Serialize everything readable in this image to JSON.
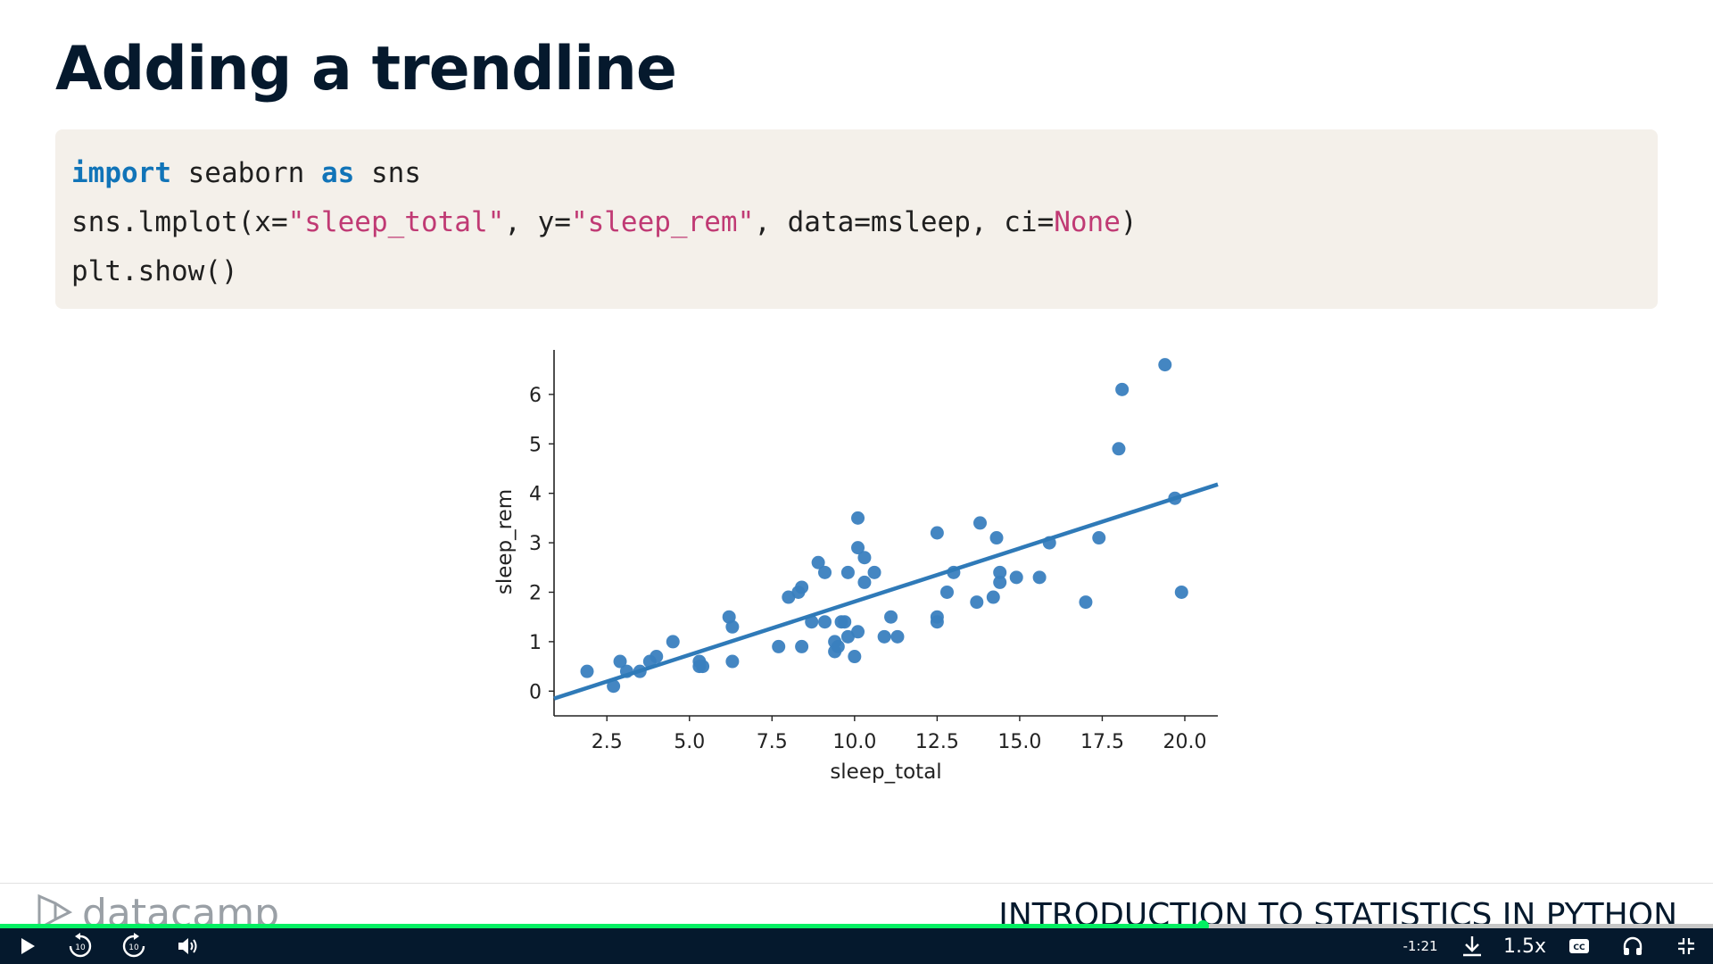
{
  "slide": {
    "title": "Adding a trendline"
  },
  "code": {
    "line1": {
      "kw1": "import",
      "mid": " seaborn ",
      "kw2": "as",
      "end": " sns"
    },
    "line2": {
      "p1": "sns.lmplot(x=",
      "s1": "\"sleep_total\"",
      "p2": ", y=",
      "s2": "\"sleep_rem\"",
      "p3": ", data=msleep, ci=",
      "n1": "None",
      "p4": ")"
    },
    "line3": "plt.show()"
  },
  "chart_data": {
    "type": "scatter",
    "xlabel": "sleep_total",
    "ylabel": "sleep_rem",
    "xlim": [
      0.9,
      21.0
    ],
    "ylim": [
      -0.5,
      6.9
    ],
    "xticks": [
      "2.5",
      "5.0",
      "7.5",
      "10.0",
      "12.5",
      "15.0",
      "17.5",
      "20.0"
    ],
    "yticks": [
      "0",
      "1",
      "2",
      "3",
      "4",
      "5",
      "6"
    ],
    "point_color": "#3a7fbf",
    "line_color": "#2f7ab8",
    "trendline": {
      "x": [
        0.9,
        21.0
      ],
      "y": [
        -0.15,
        4.18
      ]
    },
    "points": [
      [
        1.9,
        0.4
      ],
      [
        2.7,
        0.1
      ],
      [
        2.9,
        0.6
      ],
      [
        3.1,
        0.4
      ],
      [
        3.5,
        0.4
      ],
      [
        3.8,
        0.6
      ],
      [
        4.0,
        0.7
      ],
      [
        4.5,
        1.0
      ],
      [
        5.3,
        0.6
      ],
      [
        5.4,
        0.5
      ],
      [
        5.3,
        0.5
      ],
      [
        6.2,
        1.5
      ],
      [
        6.3,
        1.3
      ],
      [
        6.3,
        0.6
      ],
      [
        7.7,
        0.9
      ],
      [
        8.0,
        1.9
      ],
      [
        8.3,
        2.0
      ],
      [
        8.4,
        2.1
      ],
      [
        8.4,
        0.9
      ],
      [
        8.7,
        1.4
      ],
      [
        8.9,
        2.6
      ],
      [
        9.1,
        2.4
      ],
      [
        9.1,
        1.4
      ],
      [
        9.4,
        1.0
      ],
      [
        9.4,
        0.8
      ],
      [
        9.5,
        0.9
      ],
      [
        9.6,
        1.4
      ],
      [
        9.7,
        1.4
      ],
      [
        9.8,
        2.4
      ],
      [
        9.8,
        1.1
      ],
      [
        10.0,
        0.7
      ],
      [
        10.1,
        2.9
      ],
      [
        10.1,
        3.5
      ],
      [
        10.1,
        1.2
      ],
      [
        10.3,
        2.7
      ],
      [
        10.3,
        2.2
      ],
      [
        10.6,
        2.4
      ],
      [
        10.9,
        1.1
      ],
      [
        11.1,
        1.5
      ],
      [
        11.3,
        1.1
      ],
      [
        12.5,
        3.2
      ],
      [
        12.5,
        1.5
      ],
      [
        12.5,
        1.4
      ],
      [
        12.8,
        2.0
      ],
      [
        13.0,
        2.4
      ],
      [
        13.7,
        1.8
      ],
      [
        13.8,
        3.4
      ],
      [
        14.2,
        1.9
      ],
      [
        14.3,
        3.1
      ],
      [
        14.4,
        2.4
      ],
      [
        14.4,
        2.2
      ],
      [
        14.9,
        2.3
      ],
      [
        15.6,
        2.3
      ],
      [
        15.9,
        3.0
      ],
      [
        17.0,
        1.8
      ],
      [
        17.4,
        3.1
      ],
      [
        18.0,
        4.9
      ],
      [
        18.1,
        6.1
      ],
      [
        19.4,
        6.6
      ],
      [
        19.7,
        3.9
      ],
      [
        19.9,
        2.0
      ]
    ]
  },
  "footer": {
    "brand": "datacamp",
    "course": "INTRODUCTION TO STATISTICS IN PYTHON"
  },
  "player": {
    "progress": 0.702,
    "time_remaining": "-1:21",
    "speed": "1.5x",
    "rewind_seconds": "10",
    "forward_seconds": "10",
    "accent_color": "#03ef62",
    "bar_color": "#05192d",
    "icons": [
      "play-icon",
      "rewind-10-icon",
      "forward-10-icon",
      "volume-icon",
      "download-icon",
      "captions-icon",
      "headphones-icon",
      "exit-fullscreen-icon"
    ]
  }
}
